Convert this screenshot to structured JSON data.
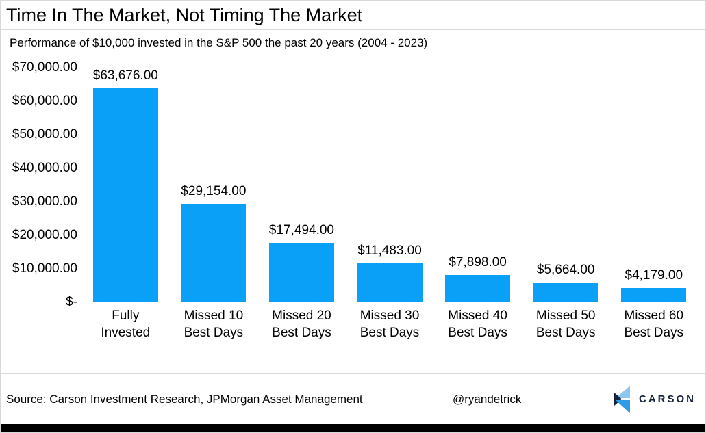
{
  "title": "Time In The Market, Not Timing The Market",
  "subtitle": "Performance of $10,000 invested in the S&P 500 the past 20 years (2004 - 2023)",
  "chart_data": {
    "type": "bar",
    "categories": [
      [
        "Fully",
        "Invested"
      ],
      [
        "Missed 10",
        "Best Days"
      ],
      [
        "Missed 20",
        "Best Days"
      ],
      [
        "Missed 30",
        "Best Days"
      ],
      [
        "Missed 40",
        "Best Days"
      ],
      [
        "Missed 50",
        "Best Days"
      ],
      [
        "Missed 60",
        "Best Days"
      ]
    ],
    "values": [
      63676,
      29154,
      17494,
      11483,
      7898,
      5664,
      4179
    ],
    "value_labels": [
      "$63,676.00",
      "$29,154.00",
      "$17,494.00",
      "$11,483.00",
      "$7,898.00",
      "$5,664.00",
      "$4,179.00"
    ],
    "y_ticks": [
      "$70,000.00",
      "$60,000.00",
      "$50,000.00",
      "$40,000.00",
      "$30,000.00",
      "$20,000.00",
      "$10,000.00",
      "$-"
    ],
    "ylim": [
      0,
      70000
    ],
    "grid": false,
    "legend": null
  },
  "footer": {
    "source": "Source: Carson Investment Research, JPMorgan Asset Management",
    "handle": "@ryandetrick",
    "logo_text": "CARSON"
  },
  "icons": {
    "logo_mark": "carson-chevron-logo-icon"
  },
  "colors": {
    "bar": "#0AA0F8",
    "axis_line": "#D9D9D9",
    "divider": "#D9D9D9",
    "bottom_bar": "#000000",
    "logo_navy": "#16233E",
    "logo_light_blue": "#8CC6F1",
    "logo_mid_blue": "#2B9CE5",
    "text": "#000000"
  }
}
